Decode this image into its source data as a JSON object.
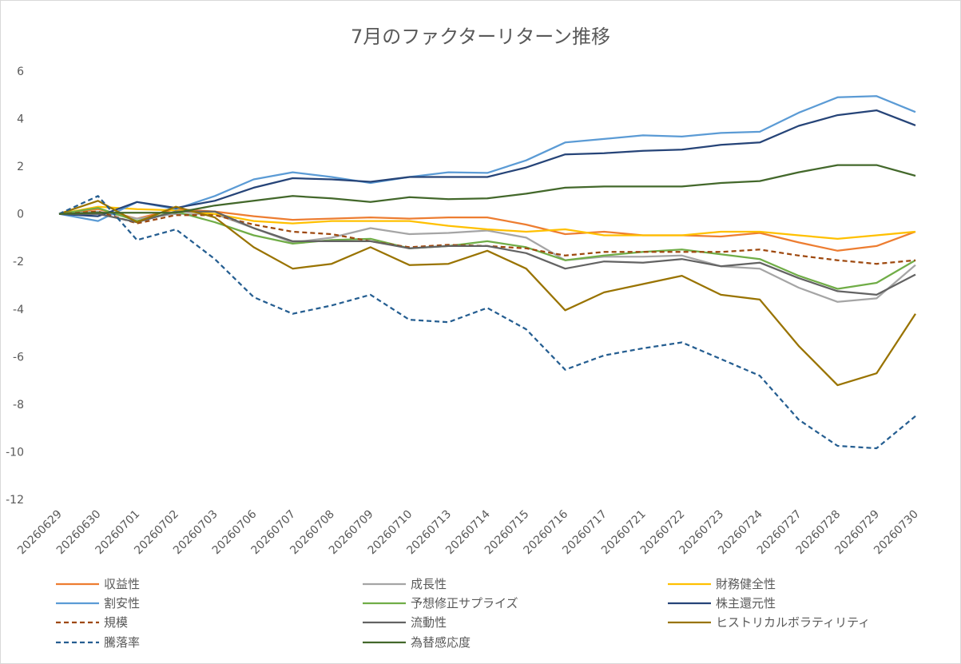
{
  "chart_data": {
    "type": "line",
    "title": "7月のファクターリターン推移",
    "xlabel": "",
    "ylabel": "",
    "ylim": [
      -12,
      6
    ],
    "yticks": [
      6,
      4,
      2,
      0,
      -2,
      -4,
      -6,
      -8,
      -10,
      -12
    ],
    "grid": false,
    "legend_position": "bottom",
    "categories": [
      "20260629",
      "20260630",
      "20260701",
      "20260702",
      "20260703",
      "20260706",
      "20260707",
      "20260708",
      "20260709",
      "20260710",
      "20260713",
      "20260714",
      "20260715",
      "20260716",
      "20260717",
      "20260721",
      "20260722",
      "20260723",
      "20260724",
      "20260727",
      "20260728",
      "20260729",
      "20260730"
    ],
    "series": [
      {
        "name": "収益性",
        "color": "#ed7d31",
        "dash": false,
        "values": [
          0,
          0.2,
          -0.2,
          0.2,
          0.1,
          -0.1,
          -0.25,
          -0.2,
          -0.15,
          -0.2,
          -0.15,
          -0.15,
          -0.45,
          -0.85,
          -0.75,
          -0.9,
          -0.9,
          -0.95,
          -0.8,
          -1.2,
          -1.55,
          -1.35,
          -0.75
        ]
      },
      {
        "name": "成長性",
        "color": "#a5a5a5",
        "dash": false,
        "values": [
          0,
          0.1,
          -0.2,
          0.0,
          0.0,
          -0.6,
          -1.2,
          -1.0,
          -0.6,
          -0.85,
          -0.8,
          -0.7,
          -1.0,
          -1.95,
          -1.8,
          -1.8,
          -1.75,
          -2.2,
          -2.3,
          -3.1,
          -3.7,
          -3.55,
          -2.15
        ]
      },
      {
        "name": "財務健全性",
        "color": "#ffc000",
        "dash": false,
        "values": [
          0,
          0.3,
          0.2,
          0.15,
          0.0,
          -0.3,
          -0.4,
          -0.3,
          -0.3,
          -0.3,
          -0.5,
          -0.65,
          -0.75,
          -0.65,
          -0.9,
          -0.9,
          -0.9,
          -0.75,
          -0.75,
          -0.9,
          -1.05,
          -0.9,
          -0.75
        ]
      },
      {
        "name": "割安性",
        "color": "#5b9bd5",
        "dash": false,
        "values": [
          0,
          -0.3,
          0.5,
          0.2,
          0.75,
          1.45,
          1.75,
          1.55,
          1.3,
          1.55,
          1.75,
          1.72,
          2.25,
          3.0,
          3.15,
          3.3,
          3.25,
          3.4,
          3.45,
          4.25,
          4.9,
          4.95,
          4.28
        ]
      },
      {
        "name": "予想修正サプライズ",
        "color": "#70ad47",
        "dash": false,
        "values": [
          0,
          0.25,
          -0.3,
          0.1,
          -0.35,
          -0.9,
          -1.25,
          -1.1,
          -1.05,
          -1.45,
          -1.35,
          -1.15,
          -1.4,
          -1.95,
          -1.75,
          -1.6,
          -1.5,
          -1.7,
          -1.9,
          -2.6,
          -3.15,
          -2.9,
          -1.95
        ]
      },
      {
        "name": "株主還元性",
        "color": "#264478",
        "dash": false,
        "values": [
          0,
          -0.1,
          0.5,
          0.25,
          0.55,
          1.1,
          1.5,
          1.45,
          1.35,
          1.55,
          1.55,
          1.55,
          1.95,
          2.5,
          2.55,
          2.65,
          2.7,
          2.9,
          3.0,
          3.7,
          4.15,
          4.35,
          3.72
        ]
      },
      {
        "name": "規模",
        "color": "#9e480e",
        "dash": true,
        "values": [
          0,
          0.1,
          -0.4,
          -0.05,
          -0.05,
          -0.45,
          -0.75,
          -0.85,
          -1.15,
          -1.4,
          -1.3,
          -1.35,
          -1.45,
          -1.75,
          -1.6,
          -1.6,
          -1.6,
          -1.6,
          -1.5,
          -1.75,
          -1.95,
          -2.1,
          -1.95
        ]
      },
      {
        "name": "流動性",
        "color": "#636363",
        "dash": false,
        "values": [
          0,
          0.0,
          -0.35,
          0.1,
          0.1,
          -0.6,
          -1.15,
          -1.15,
          -1.15,
          -1.45,
          -1.35,
          -1.35,
          -1.65,
          -2.3,
          -2.0,
          -2.05,
          -1.9,
          -2.2,
          -2.05,
          -2.7,
          -3.25,
          -3.4,
          -2.55
        ]
      },
      {
        "name": "ヒストリカルボラティリティ",
        "color": "#997300",
        "dash": false,
        "values": [
          0,
          0.55,
          -0.35,
          0.3,
          -0.15,
          -1.4,
          -2.3,
          -2.1,
          -1.4,
          -2.15,
          -2.1,
          -1.55,
          -2.3,
          -4.05,
          -3.3,
          -2.95,
          -2.6,
          -3.4,
          -3.6,
          -5.55,
          -7.2,
          -6.7,
          -4.2
        ]
      },
      {
        "name": "騰落率",
        "color": "#255e91",
        "dash": true,
        "values": [
          0,
          0.75,
          -1.1,
          -0.65,
          -1.9,
          -3.5,
          -4.2,
          -3.85,
          -3.4,
          -4.45,
          -4.55,
          -3.95,
          -4.85,
          -6.55,
          -5.95,
          -5.65,
          -5.4,
          -6.1,
          -6.8,
          -8.65,
          -9.75,
          -9.85,
          -8.5
        ]
      },
      {
        "name": "為替感応度",
        "color": "#43682b",
        "dash": false,
        "values": [
          0,
          0.05,
          0.05,
          0.05,
          0.35,
          0.55,
          0.75,
          0.65,
          0.5,
          0.7,
          0.62,
          0.65,
          0.85,
          1.1,
          1.15,
          1.15,
          1.15,
          1.3,
          1.38,
          1.75,
          2.05,
          2.05,
          1.6
        ]
      }
    ]
  }
}
